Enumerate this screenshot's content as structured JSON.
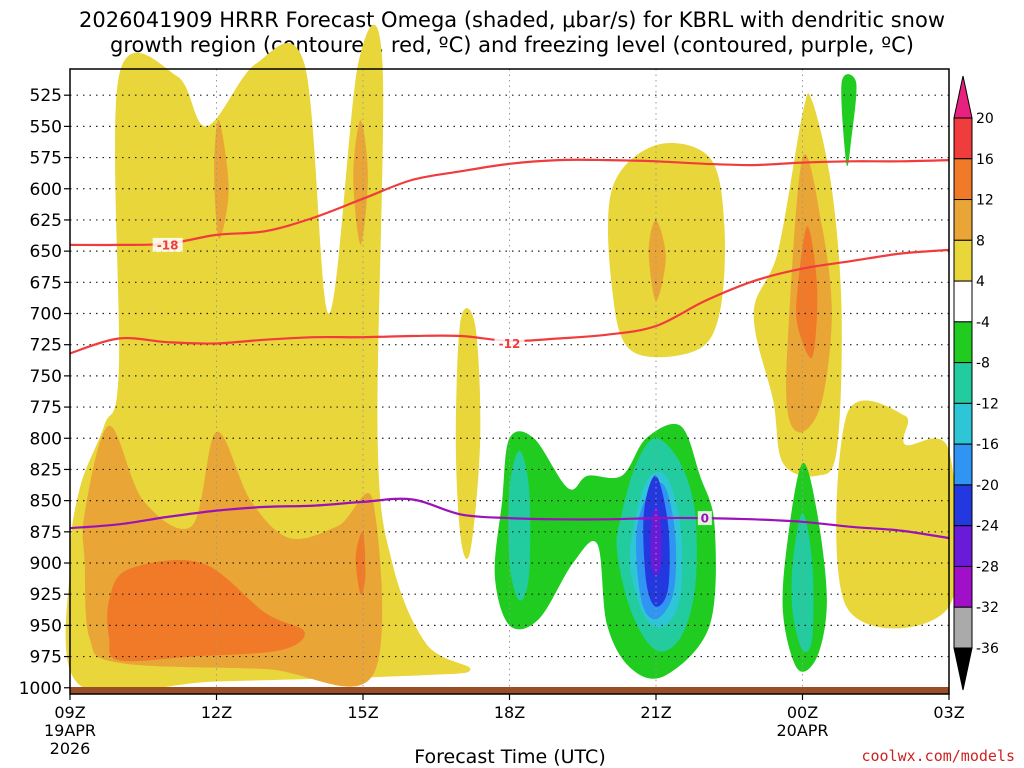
{
  "title": {
    "line1": "2026041909 HRRR Forecast Omega (shaded, μbar/s) for KBRL with dendritic snow",
    "line2": "growth region (contoured, red, ºC) and freezing level (contoured, purple, ºC)"
  },
  "credit": "coolwx.com/models",
  "chart_data": {
    "type": "heatmap",
    "title": "2026041909 HRRR Forecast Omega (shaded, μbar/s) for KBRL with dendritic snow growth region (contoured, red, ºC) and freezing level (contoured, purple, ºC)",
    "xlabel": "Forecast Time (UTC)",
    "ylabel": "",
    "xlim": [
      0,
      18
    ],
    "ylim": [
      1000,
      500
    ],
    "x_unit": "hours since 09Z 19APR 2026",
    "y_unit": "hPa",
    "x_ticks": [
      {
        "x": 0,
        "label": "09Z",
        "sub1": "19APR",
        "sub2": "2026"
      },
      {
        "x": 3,
        "label": "12Z",
        "sub1": "",
        "sub2": ""
      },
      {
        "x": 6,
        "label": "15Z",
        "sub1": "",
        "sub2": ""
      },
      {
        "x": 9,
        "label": "18Z",
        "sub1": "",
        "sub2": ""
      },
      {
        "x": 12,
        "label": "21Z",
        "sub1": "",
        "sub2": ""
      },
      {
        "x": 15,
        "label": "00Z",
        "sub1": "20APR",
        "sub2": ""
      },
      {
        "x": 18,
        "label": "03Z",
        "sub1": "",
        "sub2": ""
      }
    ],
    "y_ticks": [
      525,
      550,
      575,
      600,
      625,
      650,
      675,
      700,
      725,
      750,
      775,
      800,
      825,
      850,
      875,
      900,
      925,
      950,
      975,
      1000
    ],
    "colorbar": {
      "labels": [
        "20",
        "16",
        "12",
        "8",
        "4",
        "-4",
        "-8",
        "-12",
        "-16",
        "-20",
        "-24",
        "-28",
        "-32",
        "-36"
      ],
      "bins": [
        {
          "min": 20,
          "max": null,
          "color": "#e8217f"
        },
        {
          "min": 16,
          "max": 20,
          "color": "#f03c3c"
        },
        {
          "min": 12,
          "max": 16,
          "color": "#f07a28"
        },
        {
          "min": 8,
          "max": 12,
          "color": "#e9a637"
        },
        {
          "min": 4,
          "max": 8,
          "color": "#e8d63a"
        },
        {
          "min": -4,
          "max": 4,
          "color": "#ffffff"
        },
        {
          "min": -8,
          "max": -4,
          "color": "#1fcc1f"
        },
        {
          "min": -12,
          "max": -8,
          "color": "#22cc9e"
        },
        {
          "min": -16,
          "max": -12,
          "color": "#2ec6d6"
        },
        {
          "min": -20,
          "max": -16,
          "color": "#2f94f2"
        },
        {
          "min": -24,
          "max": -20,
          "color": "#2438e0"
        },
        {
          "min": -28,
          "max": -24,
          "color": "#6a1bd9"
        },
        {
          "min": -32,
          "max": -28,
          "color": "#a010c8"
        },
        {
          "min": -36,
          "max": -32,
          "color": "#aaaaaa"
        },
        {
          "min": null,
          "max": -36,
          "color": "#000000"
        }
      ]
    },
    "omega_regions": [
      {
        "level": 4,
        "color": "#e8d63a",
        "pts": [
          [
            1,
            510
          ],
          [
            2.2,
            510
          ],
          [
            2.8,
            550
          ],
          [
            3.8,
            500
          ],
          [
            4.8,
            500
          ],
          [
            5.3,
            700
          ],
          [
            5.9,
            500
          ],
          [
            6.4,
            500
          ],
          [
            6.3,
            800
          ],
          [
            6.6,
            900
          ],
          [
            7.3,
            965
          ],
          [
            8.2,
            985
          ],
          [
            7.2,
            990
          ],
          [
            3,
            995
          ],
          [
            0.2,
            998
          ],
          [
            0,
            900
          ],
          [
            0.2,
            840
          ],
          [
            0.7,
            790
          ],
          [
            1,
            745
          ]
        ]
      },
      {
        "level": 4,
        "color": "#e8d63a",
        "pts": [
          [
            8.0,
            705
          ],
          [
            8.3,
            710
          ],
          [
            8.4,
            800
          ],
          [
            8.2,
            890
          ],
          [
            8.0,
            880
          ],
          [
            7.9,
            800
          ]
        ]
      },
      {
        "level": 4,
        "color": "#e8d63a",
        "pts": [
          [
            11.1,
            600
          ],
          [
            12,
            565
          ],
          [
            13.1,
            575
          ],
          [
            13.4,
            630
          ],
          [
            13.3,
            700
          ],
          [
            12.8,
            730
          ],
          [
            11.5,
            730
          ],
          [
            11.1,
            680
          ]
        ]
      },
      {
        "level": 4,
        "color": "#e8d63a",
        "pts": [
          [
            14.5,
            650
          ],
          [
            15,
            540
          ],
          [
            15.2,
            530
          ],
          [
            15.6,
            600
          ],
          [
            15.8,
            700
          ],
          [
            15.7,
            810
          ],
          [
            15.3,
            830
          ],
          [
            14.6,
            820
          ],
          [
            14.4,
            770
          ],
          [
            14,
            700
          ]
        ]
      },
      {
        "level": 4,
        "color": "#e8d63a",
        "pts": [
          [
            15.9,
            782
          ],
          [
            17.1,
            782
          ],
          [
            17.1,
            805
          ],
          [
            18,
            810
          ],
          [
            18,
            935
          ],
          [
            15.9,
            935
          ]
        ]
      },
      {
        "level": 8,
        "color": "#e9a637",
        "pts": [
          [
            0.3,
            860
          ],
          [
            0.8,
            790
          ],
          [
            1.5,
            850
          ],
          [
            2.5,
            870
          ],
          [
            3,
            795
          ],
          [
            3.7,
            850
          ],
          [
            4.5,
            880
          ],
          [
            5.5,
            870
          ],
          [
            6.2,
            850
          ],
          [
            6.2,
            990
          ],
          [
            4,
            985
          ],
          [
            1,
            980
          ],
          [
            0.4,
            960
          ],
          [
            0.3,
            900
          ]
        ]
      },
      {
        "level": 8,
        "color": "#e9a637",
        "pts": [
          [
            2.95,
            585
          ],
          [
            3.05,
            545
          ],
          [
            3.25,
            600
          ],
          [
            3.05,
            640
          ]
        ]
      },
      {
        "level": 8,
        "color": "#e9a637",
        "pts": [
          [
            5.8,
            590
          ],
          [
            5.95,
            545
          ],
          [
            6.1,
            590
          ],
          [
            5.95,
            645
          ]
        ]
      },
      {
        "level": 8,
        "color": "#e9a637",
        "pts": [
          [
            11.85,
            650
          ],
          [
            12,
            625
          ],
          [
            12.2,
            655
          ],
          [
            12,
            690
          ]
        ]
      },
      {
        "level": 8,
        "color": "#e9a637",
        "pts": [
          [
            14.7,
            720
          ],
          [
            15,
            575
          ],
          [
            15.4,
            630
          ],
          [
            15.6,
            700
          ],
          [
            15.4,
            770
          ],
          [
            15,
            795
          ],
          [
            14.7,
            780
          ]
        ]
      },
      {
        "level": 12,
        "color": "#f07a28",
        "pts": [
          [
            0.8,
            930
          ],
          [
            1.2,
            905
          ],
          [
            2.7,
            900
          ],
          [
            4,
            940
          ],
          [
            4.8,
            955
          ],
          [
            4.3,
            970
          ],
          [
            2.5,
            975
          ],
          [
            1,
            978
          ],
          [
            0.8,
            960
          ]
        ]
      },
      {
        "level": 12,
        "color": "#f07a28",
        "pts": [
          [
            5.85,
            895
          ],
          [
            6.0,
            875
          ],
          [
            6.05,
            910
          ],
          [
            5.95,
            925
          ]
        ]
      },
      {
        "level": 12,
        "color": "#f07a28",
        "pts": [
          [
            14.9,
            680
          ],
          [
            15.1,
            630
          ],
          [
            15.3,
            680
          ],
          [
            15.2,
            735
          ],
          [
            14.9,
            710
          ]
        ]
      },
      {
        "level": -4,
        "color": "#1fcc1f",
        "pts": [
          [
            8.85,
            850
          ],
          [
            9,
            800
          ],
          [
            9.5,
            800
          ],
          [
            10.2,
            840
          ],
          [
            10.6,
            830
          ],
          [
            11.3,
            830
          ],
          [
            11.8,
            800
          ],
          [
            12.5,
            790
          ],
          [
            12.9,
            830
          ],
          [
            13.2,
            870
          ],
          [
            13.1,
            950
          ],
          [
            12.2,
            990
          ],
          [
            11.5,
            985
          ],
          [
            11.0,
            950
          ],
          [
            10.8,
            885
          ],
          [
            10.3,
            900
          ],
          [
            9.6,
            945
          ],
          [
            9.0,
            950
          ],
          [
            8.7,
            910
          ]
        ]
      },
      {
        "level": -4,
        "color": "#1fcc1f",
        "pts": [
          [
            14.7,
            880
          ],
          [
            15,
            820
          ],
          [
            15.3,
            860
          ],
          [
            15.5,
            930
          ],
          [
            15.3,
            975
          ],
          [
            14.9,
            985
          ],
          [
            14.6,
            940
          ]
        ]
      },
      {
        "level": -4,
        "color": "#1fcc1f",
        "pts": [
          [
            15.8,
            515
          ],
          [
            16.1,
            515
          ],
          [
            16,
            560
          ],
          [
            15.9,
            580
          ]
        ]
      },
      {
        "level": -8,
        "color": "#22cc9e",
        "pts": [
          [
            9.0,
            840
          ],
          [
            9.2,
            810
          ],
          [
            9.4,
            840
          ],
          [
            9.4,
            910
          ],
          [
            9.2,
            930
          ],
          [
            9.0,
            900
          ]
        ]
      },
      {
        "level": -8,
        "color": "#22cc9e",
        "pts": [
          [
            11.3,
            860
          ],
          [
            11.6,
            820
          ],
          [
            12,
            800
          ],
          [
            12.5,
            820
          ],
          [
            12.8,
            860
          ],
          [
            12.8,
            920
          ],
          [
            12.5,
            960
          ],
          [
            12,
            970
          ],
          [
            11.5,
            940
          ],
          [
            11.2,
            890
          ]
        ]
      },
      {
        "level": -8,
        "color": "#22cc9e",
        "pts": [
          [
            14.8,
            900
          ],
          [
            15,
            860
          ],
          [
            15.2,
            900
          ],
          [
            15.2,
            960
          ],
          [
            15,
            970
          ],
          [
            14.8,
            940
          ]
        ]
      },
      {
        "level": -12,
        "color": "#2ec6d6",
        "pts": [
          [
            11.5,
            880
          ],
          [
            11.8,
            835
          ],
          [
            12.2,
            830
          ],
          [
            12.5,
            870
          ],
          [
            12.5,
            925
          ],
          [
            12.2,
            950
          ],
          [
            11.8,
            945
          ],
          [
            11.5,
            910
          ]
        ]
      },
      {
        "level": -16,
        "color": "#2f94f2",
        "pts": [
          [
            11.6,
            875
          ],
          [
            11.9,
            840
          ],
          [
            12.2,
            840
          ],
          [
            12.4,
            880
          ],
          [
            12.35,
            925
          ],
          [
            12,
            945
          ],
          [
            11.7,
            930
          ]
        ]
      },
      {
        "level": -20,
        "color": "#2438e0",
        "pts": [
          [
            11.75,
            860
          ],
          [
            12,
            830
          ],
          [
            12.25,
            870
          ],
          [
            12.25,
            920
          ],
          [
            12,
            935
          ],
          [
            11.8,
            915
          ]
        ]
      },
      {
        "level": -24,
        "color": "#6a1bd9",
        "pts": [
          [
            11.9,
            870
          ],
          [
            12,
            855
          ],
          [
            12.1,
            870
          ],
          [
            12.1,
            900
          ],
          [
            12,
            910
          ],
          [
            11.9,
            900
          ]
        ]
      }
    ],
    "temp_contours": [
      {
        "label": "-18",
        "color": "#f03c3c",
        "label_at": [
          2,
          645
        ],
        "pts": [
          [
            0,
            645
          ],
          [
            1,
            645
          ],
          [
            2,
            644
          ],
          [
            3,
            637
          ],
          [
            4,
            634
          ],
          [
            5,
            623
          ],
          [
            6,
            608
          ],
          [
            7,
            593
          ],
          [
            8,
            586
          ],
          [
            9,
            580
          ],
          [
            10,
            577
          ],
          [
            11,
            577
          ],
          [
            12,
            578
          ],
          [
            13,
            580
          ],
          [
            14,
            581
          ],
          [
            15,
            579
          ],
          [
            16,
            578
          ],
          [
            17,
            578
          ],
          [
            18,
            577
          ]
        ]
      },
      {
        "label": "-12",
        "color": "#f03c3c",
        "label_at": [
          9,
          724
        ],
        "pts": [
          [
            0,
            732
          ],
          [
            1,
            720
          ],
          [
            2,
            723
          ],
          [
            3,
            724
          ],
          [
            4,
            721
          ],
          [
            5,
            719
          ],
          [
            6,
            719
          ],
          [
            7,
            718
          ],
          [
            8,
            718
          ],
          [
            9,
            722
          ],
          [
            10,
            720
          ],
          [
            11,
            717
          ],
          [
            12,
            710
          ],
          [
            13,
            690
          ],
          [
            14,
            674
          ],
          [
            15,
            664
          ],
          [
            16,
            658
          ],
          [
            17,
            652
          ],
          [
            18,
            649
          ]
        ]
      },
      {
        "label": "0",
        "color": "#9b12b8",
        "label_at": [
          13,
          864
        ],
        "pts": [
          [
            0,
            872
          ],
          [
            1,
            869
          ],
          [
            2,
            863
          ],
          [
            3,
            858
          ],
          [
            4,
            855
          ],
          [
            5,
            854
          ],
          [
            6,
            851
          ],
          [
            7,
            849
          ],
          [
            8,
            861
          ],
          [
            9,
            864
          ],
          [
            10,
            865
          ],
          [
            11,
            865
          ],
          [
            12,
            864
          ],
          [
            13,
            864
          ],
          [
            14,
            865
          ],
          [
            15,
            867
          ],
          [
            16,
            871
          ],
          [
            17,
            874
          ],
          [
            18,
            880
          ]
        ]
      }
    ]
  }
}
